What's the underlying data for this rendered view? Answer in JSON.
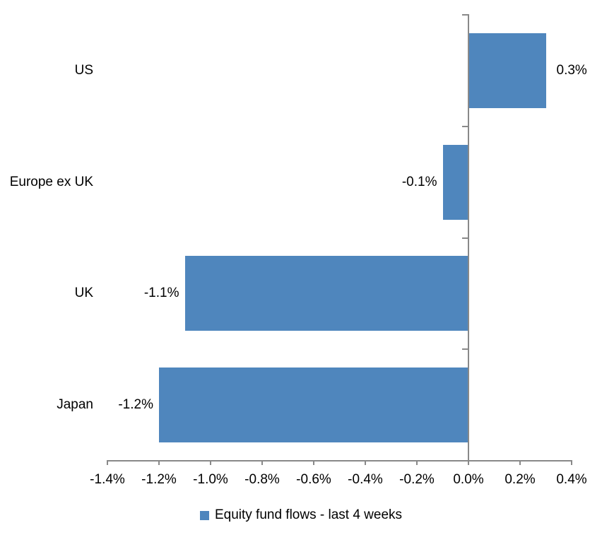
{
  "chart_data": {
    "type": "bar",
    "orientation": "horizontal",
    "title": "",
    "categories": [
      "US",
      "Europe ex UK",
      "UK",
      "Japan"
    ],
    "series": [
      {
        "name": "Equity fund flows - last 4 weeks",
        "values": [
          0.3,
          -0.1,
          -1.1,
          -1.2
        ],
        "data_labels": [
          "0.3%",
          "-0.1%",
          "-1.1%",
          "-1.2%"
        ],
        "color": "#4F86BD"
      }
    ],
    "xlim": [
      -1.4,
      0.4
    ],
    "x_ticks": [
      -1.4,
      -1.2,
      -1.0,
      -0.8,
      -0.6,
      -0.4,
      -0.2,
      0.0,
      0.2,
      0.4
    ],
    "x_tick_labels": [
      "-1.4%",
      "-1.2%",
      "-1.0%",
      "-0.8%",
      "-0.6%",
      "-0.4%",
      "-0.2%",
      "0.0%",
      "0.2%",
      "0.4%"
    ],
    "grid": false,
    "legend": {
      "position": "bottom",
      "entries": [
        {
          "label": "Equity fund flows - last 4 weeks",
          "color": "#4F86BD"
        }
      ]
    },
    "axis_color": "#898989",
    "text_color": "#000000",
    "background": "#FFFFFF"
  }
}
